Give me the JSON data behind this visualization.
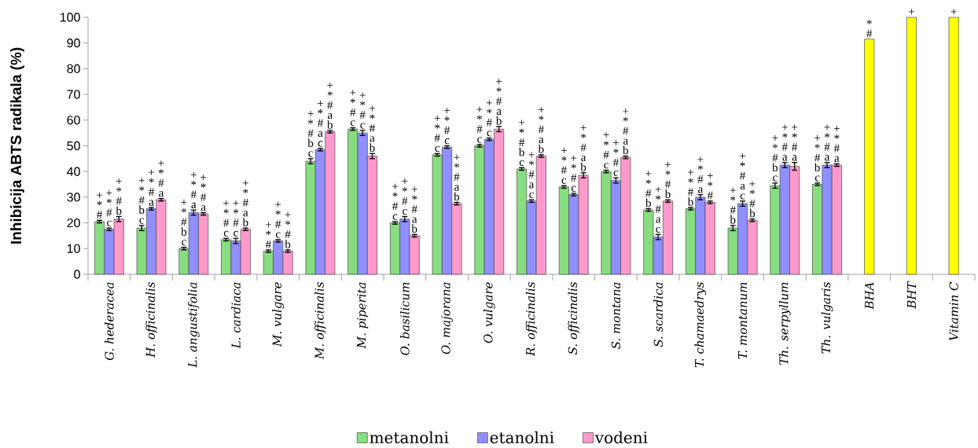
{
  "chart_data": {
    "type": "bar",
    "ylabel": "Inhibicija ABTS radikala (%)",
    "categories": [
      "G. hederacea",
      "H. officinalis",
      "L. angustifolia",
      "L. cardiaca",
      "M. vulgare",
      "M. officinalis",
      "M. piperita",
      "O. basilicum",
      "O. majorana",
      "O. vulgare",
      "R. officinalis",
      "S. officinalis",
      "S. montana",
      "S. scardica",
      "T. chamaedrys",
      "T. montanum",
      "Th. serpyllum",
      "Th. vulgaris",
      "BHA",
      "BHT",
      "Vitamin C"
    ],
    "series": [
      {
        "name": "metanolni",
        "color": "#88dd80",
        "values": [
          20.5,
          18,
          10,
          13.5,
          9,
          44,
          56.5,
          20,
          46.5,
          50,
          41,
          34,
          40,
          25,
          25.5,
          18,
          34.5,
          35,
          null,
          null,
          null
        ],
        "errors": [
          0.5,
          1,
          0.5,
          0.5,
          0.5,
          1,
          0.5,
          0.5,
          0.5,
          0.5,
          0.5,
          0.5,
          0.5,
          0.5,
          0.5,
          1,
          1,
          0.5,
          null,
          null,
          null
        ],
        "value_labels": [
          "+ * #",
          "+ * # b c",
          "+ * # b c",
          "+ * # c",
          "+ * #",
          "+ * # b c",
          "+ * # c",
          "+ * # c",
          "+ * # c",
          "+ * # c",
          "+ * # b c",
          "+ * # c",
          "+ * # c",
          "+ * # b",
          "+ * # b",
          "+ * # b",
          "+ * # b c",
          "+ * # b c",
          null,
          null,
          null
        ]
      },
      {
        "name": "etanolni",
        "color": "#8f8fff",
        "values": [
          17.5,
          25.5,
          24,
          13,
          13,
          48.5,
          55,
          21.5,
          49.5,
          52.5,
          28.5,
          31,
          36.5,
          14.5,
          30,
          27.5,
          42.5,
          42.5,
          null,
          null,
          null
        ],
        "errors": [
          0.5,
          0.5,
          1,
          1,
          0.5,
          0.5,
          1,
          1,
          0.5,
          0.5,
          0.5,
          0.5,
          1,
          1,
          1,
          1,
          1,
          1,
          null,
          null,
          null
        ],
        "value_labels": [
          "+ * # c",
          "+ * # a",
          "+ * # a",
          "+ * # c",
          "+ * # c",
          "+ * # a c",
          "+ * # c",
          "+ * # c",
          "+ * # c",
          "+ * # c",
          "+ * # a c",
          "+ * # c",
          "+ * # c",
          "+ * # a c",
          "+ * # a",
          "+ * # a c",
          "+ * # a",
          "+ * # a",
          null,
          null,
          null
        ]
      },
      {
        "name": "vodeni",
        "color": "#ff99cc",
        "values": [
          21.5,
          29,
          23.5,
          17.5,
          9,
          55.5,
          46,
          15,
          27.5,
          56.5,
          46,
          38.5,
          45.5,
          28.5,
          28,
          21,
          42,
          42.5,
          null,
          null,
          null
        ],
        "errors": [
          1,
          0.5,
          0.5,
          0.5,
          0.5,
          0.5,
          1,
          0.5,
          0.5,
          1,
          0.5,
          1,
          0.5,
          0.5,
          0.5,
          0.5,
          1.5,
          0.5,
          null,
          null,
          null
        ],
        "value_labels": [
          "+ * # b",
          "+ * # a",
          "+ * # a",
          "+ * # a b",
          "+ * # b",
          "+ * # a b",
          "+ * # a b",
          "+ * # a b",
          "+ * # a b",
          "+ * # a b",
          "+ * # a b",
          "+ * # a b",
          "+ * # a b",
          "+ * # b",
          "+ * #",
          "+ * # b",
          "+ * # a",
          "+ * # a",
          null,
          null,
          null
        ]
      },
      {
        "color": "#ffff00",
        "values": [
          null,
          null,
          null,
          null,
          null,
          null,
          null,
          null,
          null,
          null,
          null,
          null,
          null,
          null,
          null,
          null,
          null,
          null,
          91.5,
          100,
          100
        ],
        "value_labels": [
          null,
          null,
          null,
          null,
          null,
          null,
          null,
          null,
          null,
          null,
          null,
          null,
          null,
          null,
          null,
          null,
          null,
          null,
          "* #",
          "+",
          "+"
        ]
      }
    ],
    "ylim": [
      0,
      100
    ],
    "yticks": [
      0,
      10,
      20,
      30,
      40,
      50,
      60,
      70,
      80,
      90,
      100
    ],
    "legend": "bottom"
  }
}
